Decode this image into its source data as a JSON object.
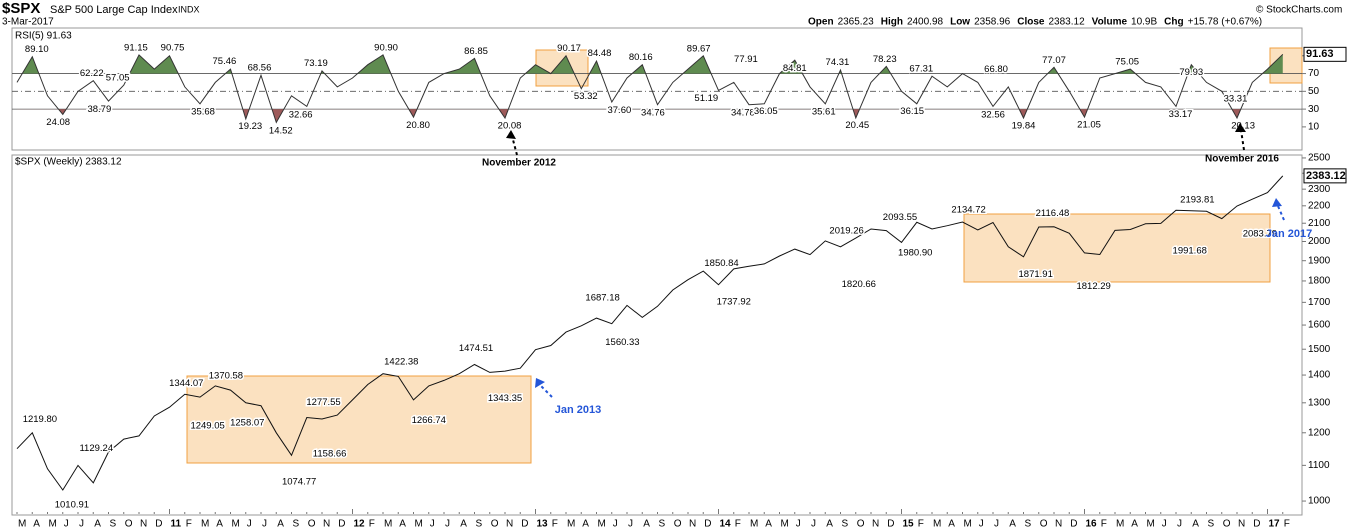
{
  "header": {
    "symbol": "$SPX",
    "name": "S&P 500 Large Cap Index",
    "exchange": "INDX",
    "date": "3-Mar-2017",
    "copyright": "© StockCharts.com",
    "stats": [
      {
        "label": "Open",
        "value": "2365.23"
      },
      {
        "label": "High",
        "value": "2400.98"
      },
      {
        "label": "Low",
        "value": "2358.96"
      },
      {
        "label": "Close",
        "value": "2383.12"
      },
      {
        "label": "Volume",
        "value": "10.9B"
      },
      {
        "label": "Chg",
        "value": "+15.78 (+0.67%)"
      }
    ]
  },
  "callouts": [
    "November 2012",
    "November 2016",
    "Jan 2013",
    "Jan 2017"
  ],
  "chart_data": [
    {
      "type": "line",
      "title": "RSI(5) 91.63",
      "color": "#333333",
      "last_value_label": "91.63",
      "ylim": [
        -16,
        119
      ],
      "yticks": [
        10,
        30,
        50,
        70,
        90
      ],
      "reference_lines": [
        {
          "value": 70,
          "fill_above": "#5f8b50"
        },
        {
          "value": 50,
          "dashed": true
        },
        {
          "value": 30,
          "fill_below": "#9e5a5a"
        }
      ],
      "values": [
        60,
        89,
        45,
        24,
        50,
        62,
        39,
        57,
        91,
        75,
        90,
        55,
        36,
        60,
        75,
        19,
        68,
        15,
        45,
        33,
        73,
        55,
        65,
        80,
        91,
        50,
        21,
        60,
        70,
        75,
        87,
        45,
        20,
        65,
        80,
        70,
        90,
        53,
        84,
        38,
        65,
        80,
        35,
        60,
        75,
        90,
        51,
        60,
        35,
        36,
        70,
        85,
        55,
        36,
        74,
        20,
        60,
        78,
        50,
        36,
        67,
        55,
        70,
        60,
        33,
        55,
        20,
        60,
        77,
        50,
        21,
        65,
        70,
        75,
        60,
        55,
        33,
        80,
        60,
        50,
        20,
        60,
        75,
        91.63
      ],
      "annotations": [
        {
          "x": 1.3,
          "value": 89.1,
          "label": "89.10"
        },
        {
          "x": 2.7,
          "value": 24.08,
          "label": "24.08"
        },
        {
          "x": 4.9,
          "value": 62.22,
          "label": "62.22"
        },
        {
          "x": 5.4,
          "value": 38.79,
          "label": "38.79"
        },
        {
          "x": 6.6,
          "value": 57.05,
          "label": "57.05"
        },
        {
          "x": 7.8,
          "value": 91.15,
          "label": "91.15"
        },
        {
          "x": 10.2,
          "value": 90.75,
          "label": "90.75"
        },
        {
          "x": 12.2,
          "value": 35.68,
          "label": "35.68"
        },
        {
          "x": 13.6,
          "value": 75.46,
          "label": "75.46"
        },
        {
          "x": 15.3,
          "value": 19.23,
          "label": "19.23"
        },
        {
          "x": 15.9,
          "value": 68.56,
          "label": "68.56"
        },
        {
          "x": 17.3,
          "value": 14.52,
          "label": "14.52"
        },
        {
          "x": 18.6,
          "value": 32.66,
          "label": "32.66"
        },
        {
          "x": 19.6,
          "value": 73.19,
          "label": "73.19"
        },
        {
          "x": 24.2,
          "value": 90.9,
          "label": "90.90"
        },
        {
          "x": 26.3,
          "value": 20.8,
          "label": "20.80"
        },
        {
          "x": 30.1,
          "value": 86.85,
          "label": "86.85"
        },
        {
          "x": 32.3,
          "value": 20.08,
          "label": "20.08"
        },
        {
          "x": 36.2,
          "value": 90.17,
          "label": "90.17"
        },
        {
          "x": 37.3,
          "value": 53.32,
          "label": "53.32"
        },
        {
          "x": 38.2,
          "value": 84.48,
          "label": "84.48"
        },
        {
          "x": 39.5,
          "value": 37.6,
          "label": "37.60"
        },
        {
          "x": 40.9,
          "value": 80.16,
          "label": "80.16"
        },
        {
          "x": 41.7,
          "value": 34.76,
          "label": "34.76"
        },
        {
          "x": 44.7,
          "value": 89.67,
          "label": "89.67"
        },
        {
          "x": 45.2,
          "value": 51.19,
          "label": "51.19"
        },
        {
          "x": 47.6,
          "value": 34.78,
          "label": "34.78"
        },
        {
          "x": 47.8,
          "value": 77.91,
          "label": "77.91"
        },
        {
          "x": 49.1,
          "value": 36.05,
          "label": "36.05"
        },
        {
          "x": 51,
          "value": 84.81,
          "label": "84.81"
        },
        {
          "x": 52.9,
          "value": 35.61,
          "label": "35.61"
        },
        {
          "x": 53.8,
          "value": 74.31,
          "label": "74.31"
        },
        {
          "x": 55.1,
          "value": 20.45,
          "label": "20.45"
        },
        {
          "x": 56.9,
          "value": 78.23,
          "label": "78.23"
        },
        {
          "x": 58.7,
          "value": 36.15,
          "label": "36.15"
        },
        {
          "x": 59.3,
          "value": 67.31,
          "label": "67.31"
        },
        {
          "x": 64,
          "value": 32.56,
          "label": "32.56"
        },
        {
          "x": 64.2,
          "value": 66.8,
          "label": "66.80"
        },
        {
          "x": 66,
          "value": 19.84,
          "label": "19.84"
        },
        {
          "x": 68,
          "value": 77.07,
          "label": "77.07"
        },
        {
          "x": 70.3,
          "value": 21.05,
          "label": "21.05"
        },
        {
          "x": 72.8,
          "value": 75.05,
          "label": "75.05"
        },
        {
          "x": 76.3,
          "value": 33.17,
          "label": "33.17"
        },
        {
          "x": 77,
          "value": 79.93,
          "label": "79.93"
        },
        {
          "x": 79.9,
          "value": 33.31,
          "label": "33.31"
        },
        {
          "x": 80.4,
          "value": 20.13,
          "label": "20.13"
        }
      ]
    },
    {
      "type": "line",
      "title": "$SPX (Weekly) 2383.12",
      "color": "#111111",
      "last_value_label": "2383.12",
      "log_scale": true,
      "ylim": [
        966,
        2513
      ],
      "yticks": [
        1000,
        1100,
        1200,
        1300,
        1400,
        1500,
        1600,
        1700,
        1800,
        1900,
        2000,
        2100,
        2200,
        2300,
        2400,
        2500
      ],
      "categories": [
        "M",
        "A",
        "M",
        "J",
        "J",
        "A",
        "S",
        "O",
        "N",
        "D",
        "11",
        "F",
        "M",
        "A",
        "M",
        "J",
        "J",
        "A",
        "S",
        "O",
        "N",
        "D",
        "12",
        "F",
        "M",
        "A",
        "M",
        "J",
        "J",
        "A",
        "S",
        "O",
        "N",
        "D",
        "13",
        "F",
        "M",
        "A",
        "M",
        "J",
        "J",
        "A",
        "S",
        "O",
        "N",
        "D",
        "14",
        "F",
        "M",
        "A",
        "M",
        "J",
        "J",
        "A",
        "S",
        "O",
        "N",
        "D",
        "15",
        "F",
        "M",
        "A",
        "M",
        "J",
        "J",
        "A",
        "S",
        "O",
        "N",
        "D",
        "16",
        "F",
        "M",
        "A",
        "M",
        "J",
        "J",
        "A",
        "S",
        "O",
        "N",
        "D",
        "17",
        "F"
      ],
      "values": [
        1150,
        1200,
        1090,
        1030,
        1100,
        1050,
        1140,
        1180,
        1190,
        1255,
        1285,
        1330,
        1320,
        1360,
        1345,
        1300,
        1290,
        1200,
        1130,
        1250,
        1245,
        1258,
        1310,
        1365,
        1405,
        1395,
        1310,
        1360,
        1380,
        1405,
        1440,
        1410,
        1415,
        1426,
        1498,
        1515,
        1570,
        1597,
        1630,
        1606,
        1686,
        1633,
        1682,
        1757,
        1806,
        1848,
        1782,
        1859,
        1872,
        1884,
        1924,
        1960,
        1931,
        2003,
        1972,
        2018,
        2068,
        2059,
        1995,
        2105,
        2068,
        2086,
        2107,
        2063,
        2104,
        1972,
        1920,
        2079,
        2080,
        2044,
        1940,
        1932,
        2060,
        2065,
        2097,
        2099,
        2174,
        2171,
        2168,
        2126,
        2199,
        2239,
        2279,
        2383.12
      ],
      "annotations": [
        {
          "x": 1.5,
          "value": 1219.8,
          "label": "1219.80"
        },
        {
          "x": 3.6,
          "value": 1010.91,
          "label": "1010.91"
        },
        {
          "x": 5.2,
          "value": 1129.24,
          "label": "1129.24"
        },
        {
          "x": 11.1,
          "value": 1344.07,
          "label": "1344.07"
        },
        {
          "x": 12.5,
          "value": 1249.05,
          "label": "1249.05"
        },
        {
          "x": 13.7,
          "value": 1370.58,
          "label": "1370.58"
        },
        {
          "x": 15.1,
          "value": 1258.07,
          "label": "1258.07"
        },
        {
          "x": 18.5,
          "value": 1074.77,
          "label": "1074.77"
        },
        {
          "x": 20.1,
          "value": 1277.55,
          "label": "1277.55"
        },
        {
          "x": 20.5,
          "value": 1158.66,
          "label": "1158.66"
        },
        {
          "x": 25.2,
          "value": 1422.38,
          "label": "1422.38"
        },
        {
          "x": 27,
          "value": 1266.74,
          "label": "1266.74"
        },
        {
          "x": 30.1,
          "value": 1474.51,
          "label": "1474.51"
        },
        {
          "x": 32,
          "value": 1343.35,
          "label": "1343.35"
        },
        {
          "x": 38.4,
          "value": 1687.18,
          "label": "1687.18"
        },
        {
          "x": 39.7,
          "value": 1560.33,
          "label": "1560.33"
        },
        {
          "x": 46.2,
          "value": 1850.84,
          "label": "1850.84"
        },
        {
          "x": 47,
          "value": 1737.92,
          "label": "1737.92"
        },
        {
          "x": 54.4,
          "value": 2019.26,
          "label": "2019.26"
        },
        {
          "x": 55.2,
          "value": 1820.66,
          "label": "1820.66"
        },
        {
          "x": 57.9,
          "value": 2093.55,
          "label": "2093.55"
        },
        {
          "x": 58.9,
          "value": 1980.9,
          "label": "1980.90"
        },
        {
          "x": 62.4,
          "value": 2134.72,
          "label": "2134.72"
        },
        {
          "x": 66.8,
          "value": 1871.91,
          "label": "1871.91"
        },
        {
          "x": 67.9,
          "value": 2116.48,
          "label": "2116.48"
        },
        {
          "x": 70.6,
          "value": 1812.29,
          "label": "1812.29"
        },
        {
          "x": 76.9,
          "value": 1991.68,
          "label": "1991.68"
        },
        {
          "x": 77.4,
          "value": 2193.81,
          "label": "2193.81"
        },
        {
          "x": 81.5,
          "value": 2083.79,
          "label": "2083.79"
        }
      ]
    }
  ]
}
